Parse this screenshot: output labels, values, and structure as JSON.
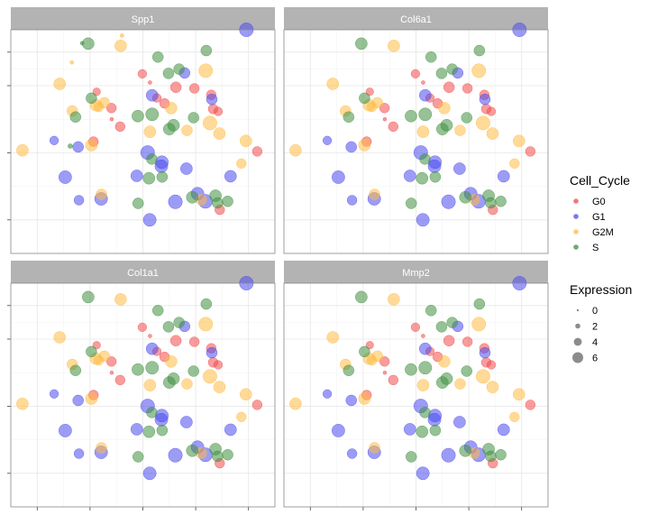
{
  "chart_data": {
    "type": "scatter",
    "facets": [
      "Spp1",
      "Col6a1",
      "Col1a1",
      "Mmp2"
    ],
    "xlim": [
      0,
      100
    ],
    "ylim": [
      0,
      100
    ],
    "x_ticks": [
      10,
      30,
      50,
      70,
      90
    ],
    "y_ticks": [
      15,
      45,
      75,
      90
    ],
    "grid": true,
    "legend_position": "right",
    "legends": {
      "color": {
        "title": "Cell_Cycle",
        "levels": [
          {
            "name": "G0",
            "color": "#f24a4a"
          },
          {
            "name": "G1",
            "color": "#4a4aee"
          },
          {
            "name": "G2M",
            "color": "#ffbb44"
          },
          {
            "name": "S",
            "color": "#3f8f3f"
          }
        ]
      },
      "size": {
        "title": "Expression",
        "levels": [
          {
            "label": "0",
            "value": 0
          },
          {
            "label": "2",
            "value": 2
          },
          {
            "label": "4",
            "value": 4
          },
          {
            "label": "6",
            "value": 6
          }
        ]
      }
    },
    "series": [
      {
        "name": "G0",
        "x": [
          49.8,
          76.6,
          75.9,
          31.3,
          79.1,
          38.1,
          32.5,
          62.5,
          93.3,
          78.5,
          52.7,
          58.2,
          69.5,
          38.2,
          55.3,
          41.4
        ],
        "y": [
          80.3,
          64.6,
          70.9,
          50.0,
          19.5,
          65.0,
          72.3,
          74.3,
          45.6,
          63.5,
          76.4,
          67.1,
          73.8,
          60.0,
          69.5,
          56.7
        ],
        "e": [
          2.5,
          3.0,
          3.0,
          3.0,
          3.0,
          3.0,
          2.0,
          3.5,
          3.0,
          2.5,
          0.1,
          3.0,
          3.0,
          0.0,
          2.5,
          3.0
        ]
      },
      {
        "name": "G1",
        "x": [
          89.2,
          65.8,
          53.5,
          25.5,
          76.1,
          83.2,
          47.7,
          57.0,
          51.8,
          70.7,
          66.5,
          57.2,
          62.3,
          73.7,
          34.2,
          25.8,
          20.6,
          52.6,
          16.4
        ],
        "y": [
          100.0,
          80.7,
          70.7,
          47.6,
          68.9,
          34.5,
          34.7,
          39.0,
          45.1,
          26.7,
          37.9,
          40.8,
          23.1,
          23.3,
          24.4,
          23.8,
          34.1,
          15.0,
          50.5
        ],
        "e": [
          5.0,
          3.5,
          4.0,
          3.5,
          3.5,
          4.0,
          4.0,
          4.5,
          5.0,
          4.5,
          4.0,
          4.5,
          5.0,
          5.0,
          4.5,
          3.0,
          4.5,
          4.5,
          2.5
        ]
      },
      {
        "name": "G2M",
        "x": [
          41.6,
          4.4,
          52.7,
          18.5,
          72.1,
          32.2,
          60.7,
          35.4,
          33.3,
          66.7,
          34.3,
          73.8,
          30.5,
          23.3,
          75.4,
          79.0,
          87.3,
          89.0
        ],
        "y": [
          92.8,
          46.1,
          54.4,
          75.8,
          24.0,
          66.3,
          65.0,
          67.4,
          65.5,
          55.0,
          26.4,
          81.7,
          48.4,
          63.7,
          58.3,
          53.6,
          40.2,
          50.3
        ],
        "e": [
          4.0,
          4.0,
          4.0,
          4.0,
          3.5,
          4.0,
          4.0,
          3.5,
          3.0,
          3.5,
          3.5,
          5.0,
          4.0,
          3.5,
          5.0,
          4.0,
          3.0,
          4.0
        ],
        "extra_in_facet_Spp1": [
          [
            42.1,
            97.4,
            0.2
          ],
          [
            23.1,
            85.4,
            0.1
          ]
        ]
      },
      {
        "name": "S",
        "x": [
          29.3,
          55.7,
          63.7,
          74.0,
          69.2,
          60.0,
          61.6,
          48.1,
          24.5,
          30.5,
          68.7,
          53.5,
          77.5,
          78.3,
          82.1,
          59.7,
          48.2,
          57.3,
          52.3,
          53.4
        ],
        "y": [
          93.8,
          87.8,
          82.4,
          90.7,
          60.7,
          55.6,
          57.3,
          61.4,
          61.0,
          69.4,
          25.1,
          62.2,
          25.8,
          22.6,
          23.3,
          80.5,
          22.4,
          34.2,
          33.6,
          42.2
        ],
        "e": [
          4.0,
          3.5,
          3.5,
          3.5,
          3.5,
          4.0,
          4.0,
          4.0,
          3.5,
          3.5,
          4.0,
          4.5,
          4.0,
          3.5,
          3.5,
          3.5,
          3.5,
          3.5,
          4.0,
          3.5
        ],
        "extra_in_facet_Spp1": [
          [
            27.0,
            94.0,
            0.1
          ],
          [
            22.5,
            48.0,
            0.5
          ]
        ]
      }
    ]
  }
}
